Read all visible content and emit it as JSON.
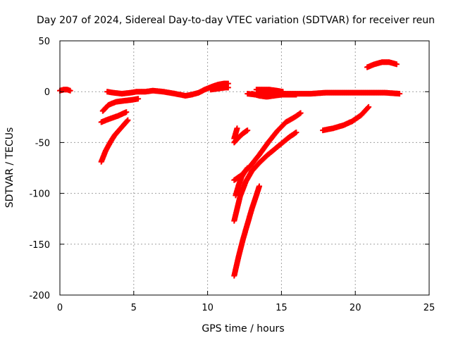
{
  "chart_data": {
    "type": "scatter",
    "title": "Day 207 of 2024, Sidereal Day-to-day VTEC variation (SDTVAR) for receiver reun",
    "xlabel": "GPS time / hours",
    "ylabel": "SDTVAR / TECUs",
    "xlim": [
      0,
      25
    ],
    "ylim": [
      -200,
      50
    ],
    "xticks": [
      0,
      5,
      10,
      15,
      20,
      25
    ],
    "yticks": [
      50,
      0,
      -50,
      -100,
      -150,
      -200
    ],
    "grid": true,
    "legend": "none",
    "marker": "plus",
    "color": "#ff0000",
    "segments": [
      {
        "x": [
          0.0,
          0.25,
          0.5,
          0.7
        ],
        "y": [
          1,
          2,
          2,
          1
        ]
      },
      {
        "x": [
          3.2,
          3.6,
          4.2,
          4.8,
          5.2,
          5.8,
          6.3,
          7.0,
          7.8,
          8.5,
          8.9
        ],
        "y": [
          0,
          -1,
          -2,
          -1,
          0,
          0,
          1,
          0,
          -2,
          -4,
          -3
        ]
      },
      {
        "x": [
          2.9,
          3.3,
          3.8,
          4.3,
          4.9,
          5.3
        ],
        "y": [
          -19,
          -13,
          -10,
          -9,
          -8,
          -7
        ]
      },
      {
        "x": [
          2.8,
          3.3,
          3.9,
          4.5
        ],
        "y": [
          -30,
          -27,
          -24,
          -20
        ]
      },
      {
        "x": [
          2.8,
          3.1,
          3.4,
          3.7,
          4.0,
          4.3,
          4.6
        ],
        "y": [
          -69,
          -58,
          -50,
          -43,
          -38,
          -33,
          -28
        ]
      },
      {
        "x": [
          8.9,
          9.4,
          9.8,
          10.3,
          10.7,
          11.1,
          11.4
        ],
        "y": [
          -3,
          -1,
          2,
          5,
          7,
          8,
          8
        ]
      },
      {
        "x": [
          10.2,
          10.7,
          11.2,
          11.4
        ],
        "y": [
          2,
          3,
          4,
          4
        ]
      },
      {
        "x": [
          11.8,
          12.0
        ],
        "y": [
          -46,
          -36
        ]
      },
      {
        "x": [
          11.8,
          12.1,
          12.4,
          12.7
        ],
        "y": [
          -50,
          -45,
          -41,
          -38
        ]
      },
      {
        "x": [
          12.7,
          13.3,
          13.9,
          14.5,
          15.2,
          16.0,
          17.0,
          18.0,
          19.0,
          20.0,
          21.0,
          22.0,
          23.0
        ],
        "y": [
          -2,
          -3,
          -3,
          -3,
          -2,
          -2,
          -2,
          -1,
          -1,
          -1,
          -1,
          -1,
          -2
        ]
      },
      {
        "x": [
          13.3,
          13.7,
          14.2,
          14.7,
          15.1
        ],
        "y": [
          2,
          2,
          2,
          1,
          0
        ]
      },
      {
        "x": [
          13.0,
          13.5,
          14.0,
          14.5,
          15.0,
          15.5,
          16.0
        ],
        "y": [
          -2,
          -4,
          -5,
          -4,
          -3,
          -3,
          -3
        ]
      },
      {
        "x": [
          11.8,
          12.3,
          12.9,
          13.5,
          14.1,
          14.7,
          15.3,
          15.9,
          16.3
        ],
        "y": [
          -87,
          -82,
          -73,
          -62,
          -50,
          -39,
          -30,
          -25,
          -21
        ]
      },
      {
        "x": [
          11.8,
          12.2,
          12.6,
          13.0,
          13.5,
          14.0,
          14.5,
          15.0,
          15.5,
          16.0
        ],
        "y": [
          -127,
          -103,
          -88,
          -78,
          -70,
          -63,
          -57,
          -51,
          -45,
          -40
        ]
      },
      {
        "x": [
          11.9,
          12.1,
          12.3,
          12.5,
          12.7
        ],
        "y": [
          -102,
          -92,
          -84,
          -79,
          -75
        ]
      },
      {
        "x": [
          11.8,
          12.1,
          12.4,
          12.7,
          13.0,
          13.3,
          13.5
        ],
        "y": [
          -181,
          -162,
          -145,
          -130,
          -115,
          -102,
          -93
        ]
      },
      {
        "x": [
          17.8,
          18.5,
          19.2,
          19.8,
          20.4,
          20.9
        ],
        "y": [
          -38,
          -36,
          -33,
          -29,
          -23,
          -15
        ]
      },
      {
        "x": [
          20.8,
          21.3,
          21.8,
          22.3,
          22.8
        ],
        "y": [
          24,
          27,
          29,
          29,
          27
        ]
      }
    ]
  }
}
